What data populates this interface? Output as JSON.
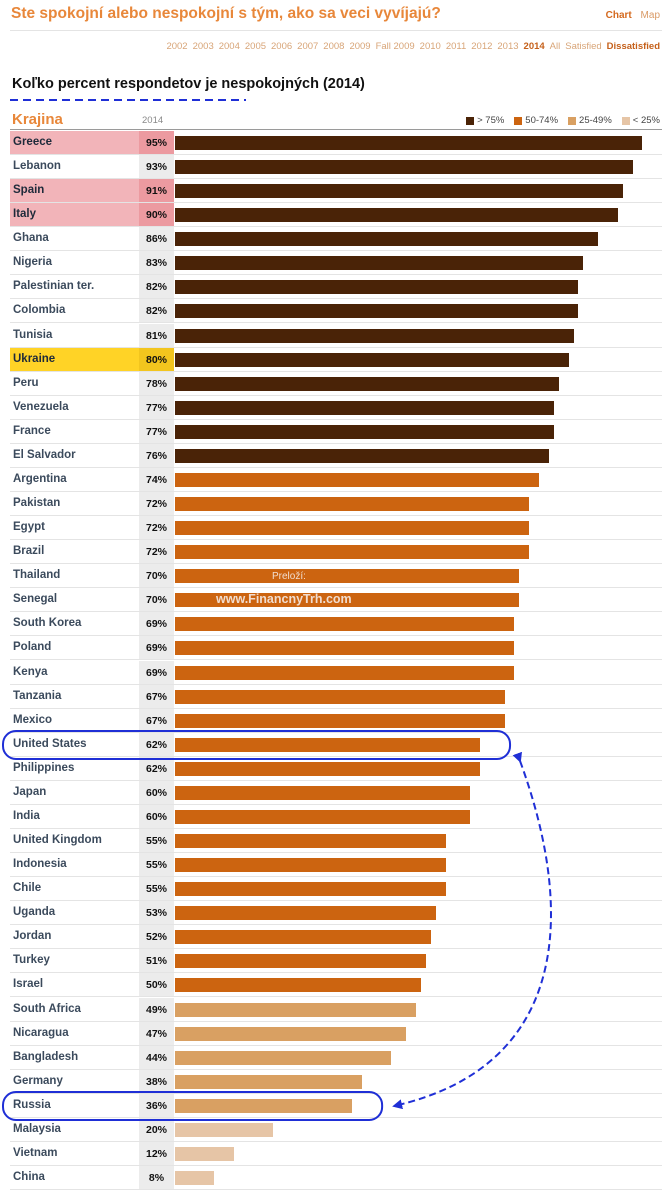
{
  "page_title": "Ste spokojní alebo nespokojní s tým, ako sa veci vyvíjajú?",
  "view_toggle": {
    "chart": "Chart",
    "map": "Map"
  },
  "year_nav": {
    "years": [
      "2002",
      "2003",
      "2004",
      "2005",
      "2006",
      "2007",
      "2008",
      "2009",
      "Fall 2009",
      "2010",
      "2011",
      "2012",
      "2013",
      "2014",
      "All"
    ],
    "selected": "2014",
    "satisfied": "Satisfied",
    "dissatisfied": "Dissatisfied"
  },
  "colors": {
    "gt75": "#4a2307",
    "50-74": "#cc6410",
    "25-49": "#d9a062",
    "lt25": "#e6c5a6",
    "accent": "#e8873a",
    "highlight_pink": "#f2b4b9",
    "highlight_yellow": "#ffd326",
    "annotation_blue": "#1f2fd6"
  },
  "watermark": {
    "line1": "Preloží:",
    "line2": "www.FinancnyTrh.com"
  },
  "chart_data": {
    "type": "bar",
    "orientation": "horizontal",
    "title": "Koľko percent respondetov je nespokojných (2014)",
    "category_header": "Krajina",
    "value_header": "2014",
    "unit": "%",
    "xlim": [
      0,
      100
    ],
    "legend": [
      {
        "label": "> 75%",
        "color": "#4a2307",
        "min": 75
      },
      {
        "label": "50-74%",
        "color": "#cc6410",
        "min": 50
      },
      {
        "label": "25-49%",
        "color": "#d9a062",
        "min": 25
      },
      {
        "label": "< 25%",
        "color": "#e6c5a6",
        "min": 0
      }
    ],
    "legend_position": "top-right",
    "categories": [
      "Greece",
      "Lebanon",
      "Spain",
      "Italy",
      "Ghana",
      "Nigeria",
      "Palestinian ter.",
      "Colombia",
      "Tunisia",
      "Ukraine",
      "Peru",
      "Venezuela",
      "France",
      "El Salvador",
      "Argentina",
      "Pakistan",
      "Egypt",
      "Brazil",
      "Thailand",
      "Senegal",
      "South Korea",
      "Poland",
      "Kenya",
      "Tanzania",
      "Mexico",
      "United States",
      "Philippines",
      "Japan",
      "India",
      "United Kingdom",
      "Indonesia",
      "Chile",
      "Uganda",
      "Jordan",
      "Turkey",
      "Israel",
      "South Africa",
      "Nicaragua",
      "Bangladesh",
      "Germany",
      "Russia",
      "Malaysia",
      "Vietnam",
      "China"
    ],
    "values": [
      95,
      93,
      91,
      90,
      86,
      83,
      82,
      82,
      81,
      80,
      78,
      77,
      77,
      76,
      74,
      72,
      72,
      72,
      70,
      70,
      69,
      69,
      69,
      67,
      67,
      62,
      62,
      60,
      60,
      55,
      55,
      55,
      53,
      52,
      51,
      50,
      49,
      47,
      44,
      38,
      36,
      20,
      12,
      8
    ],
    "highlight_pink": [
      "Greece",
      "Spain",
      "Italy"
    ],
    "highlight_yellow": [
      "Ukraine"
    ],
    "circled": [
      "United States",
      "Russia"
    ]
  }
}
